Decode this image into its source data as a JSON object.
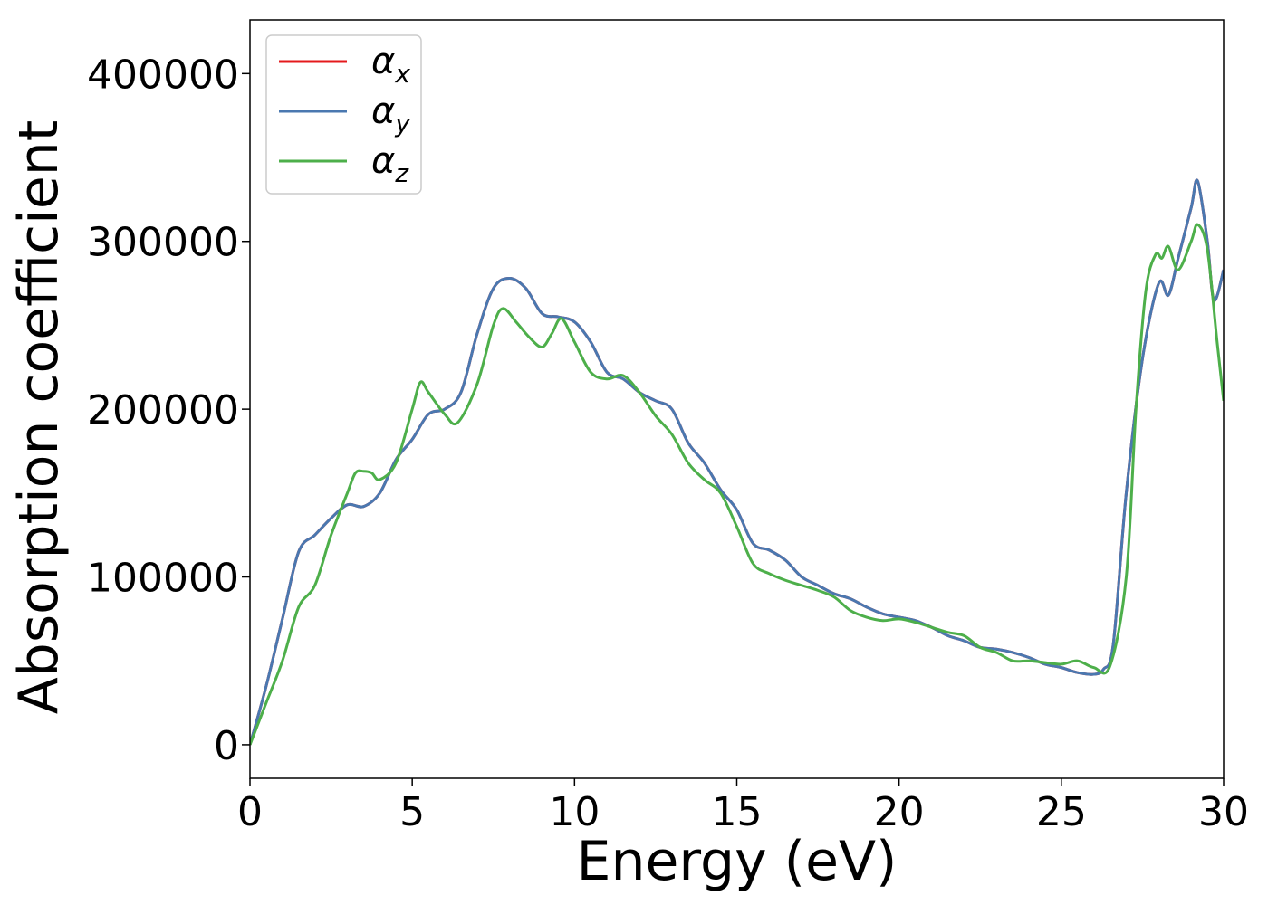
{
  "chart_data": {
    "type": "line",
    "title": "",
    "xlabel": "Energy (eV)",
    "ylabel": "Absorption coefficient",
    "xlim": [
      0,
      30
    ],
    "ylim": [
      -20000,
      432000
    ],
    "x_ticks": [
      0,
      5,
      10,
      15,
      20,
      25,
      30
    ],
    "y_ticks": [
      0,
      100000,
      200000,
      300000,
      400000
    ],
    "grid": false,
    "legend_position": "top-left",
    "series": [
      {
        "name": "αx",
        "base": "α",
        "sub": "x",
        "color": "#e41a1c",
        "x": [
          0,
          0.5,
          1,
          1.5,
          2,
          2.5,
          3,
          3.5,
          4,
          4.5,
          5,
          5.5,
          6,
          6.5,
          7,
          7.5,
          8,
          8.5,
          9,
          9.5,
          10,
          10.5,
          11,
          11.5,
          12,
          12.5,
          13,
          13.5,
          14,
          14.5,
          15,
          15.5,
          16,
          16.5,
          17,
          17.5,
          18,
          18.5,
          19,
          19.5,
          20,
          20.5,
          21,
          21.5,
          22,
          22.5,
          23,
          23.5,
          24,
          24.5,
          25,
          25.5,
          26,
          26.3,
          26.6,
          27,
          27.5,
          28,
          28.3,
          28.6,
          29,
          29.2,
          29.5,
          29.7,
          30
        ],
        "y": [
          0,
          35000,
          75000,
          115000,
          125000,
          135000,
          143000,
          142000,
          150000,
          170000,
          182000,
          197000,
          200000,
          210000,
          245000,
          272000,
          278000,
          272000,
          257000,
          255000,
          252000,
          240000,
          222000,
          218000,
          210000,
          205000,
          200000,
          180000,
          168000,
          152000,
          140000,
          120000,
          116000,
          110000,
          100000,
          95000,
          90000,
          87000,
          82000,
          78000,
          76000,
          74000,
          70000,
          65000,
          62000,
          58000,
          57000,
          55000,
          52000,
          48000,
          46000,
          43000,
          42000,
          45000,
          60000,
          150000,
          230000,
          275000,
          268000,
          290000,
          320000,
          336000,
          300000,
          265000,
          283000
        ]
      },
      {
        "name": "αy",
        "base": "α",
        "sub": "y",
        "color": "#4a78b0",
        "x": [
          0,
          0.5,
          1,
          1.5,
          2,
          2.5,
          3,
          3.5,
          4,
          4.5,
          5,
          5.5,
          6,
          6.5,
          7,
          7.5,
          8,
          8.5,
          9,
          9.5,
          10,
          10.5,
          11,
          11.5,
          12,
          12.5,
          13,
          13.5,
          14,
          14.5,
          15,
          15.5,
          16,
          16.5,
          17,
          17.5,
          18,
          18.5,
          19,
          19.5,
          20,
          20.5,
          21,
          21.5,
          22,
          22.5,
          23,
          23.5,
          24,
          24.5,
          25,
          25.5,
          26,
          26.3,
          26.6,
          27,
          27.5,
          28,
          28.3,
          28.6,
          29,
          29.2,
          29.5,
          29.7,
          30
        ],
        "y": [
          0,
          35000,
          75000,
          115000,
          125000,
          135000,
          143000,
          142000,
          150000,
          170000,
          182000,
          197000,
          200000,
          210000,
          245000,
          272000,
          278000,
          272000,
          257000,
          255000,
          252000,
          240000,
          222000,
          218000,
          210000,
          205000,
          200000,
          180000,
          168000,
          152000,
          140000,
          120000,
          116000,
          110000,
          100000,
          95000,
          90000,
          87000,
          82000,
          78000,
          76000,
          74000,
          70000,
          65000,
          62000,
          58000,
          57000,
          55000,
          52000,
          48000,
          46000,
          43000,
          42000,
          45000,
          60000,
          150000,
          230000,
          275000,
          268000,
          290000,
          320000,
          336000,
          300000,
          265000,
          283000
        ]
      },
      {
        "name": "αz",
        "base": "α",
        "sub": "z",
        "color": "#4daf4a",
        "x": [
          0,
          0.5,
          1,
          1.5,
          2,
          2.5,
          3,
          3.25,
          3.5,
          3.75,
          4,
          4.5,
          5,
          5.25,
          5.5,
          6,
          6.4,
          7,
          7.5,
          7.8,
          8.2,
          8.6,
          9,
          9.3,
          9.6,
          10,
          10.5,
          11,
          11.5,
          12,
          12.5,
          13,
          13.5,
          14,
          14.5,
          15,
          15.5,
          16,
          16.5,
          17,
          17.5,
          18,
          18.5,
          19,
          19.5,
          20,
          20.5,
          21,
          21.5,
          22,
          22.5,
          23,
          23.5,
          24,
          24.5,
          25,
          25.5,
          26,
          26.5,
          27,
          27.3,
          27.6,
          27.9,
          28.1,
          28.3,
          28.6,
          29,
          29.2,
          29.5,
          29.8,
          30
        ],
        "y": [
          0,
          25000,
          50000,
          82000,
          95000,
          125000,
          150000,
          162000,
          163000,
          162000,
          158000,
          168000,
          200000,
          216000,
          210000,
          197000,
          192000,
          215000,
          250000,
          260000,
          252000,
          243000,
          237000,
          245000,
          254000,
          240000,
          222000,
          218000,
          220000,
          210000,
          196000,
          185000,
          168000,
          158000,
          150000,
          130000,
          108000,
          102000,
          98000,
          95000,
          92000,
          88000,
          80000,
          76000,
          74000,
          75000,
          73000,
          70000,
          67000,
          65000,
          58000,
          55000,
          50000,
          50000,
          49000,
          48000,
          50000,
          46000,
          47000,
          100000,
          200000,
          270000,
          292000,
          290000,
          297000,
          283000,
          300000,
          310000,
          295000,
          240000,
          205000
        ]
      }
    ]
  }
}
